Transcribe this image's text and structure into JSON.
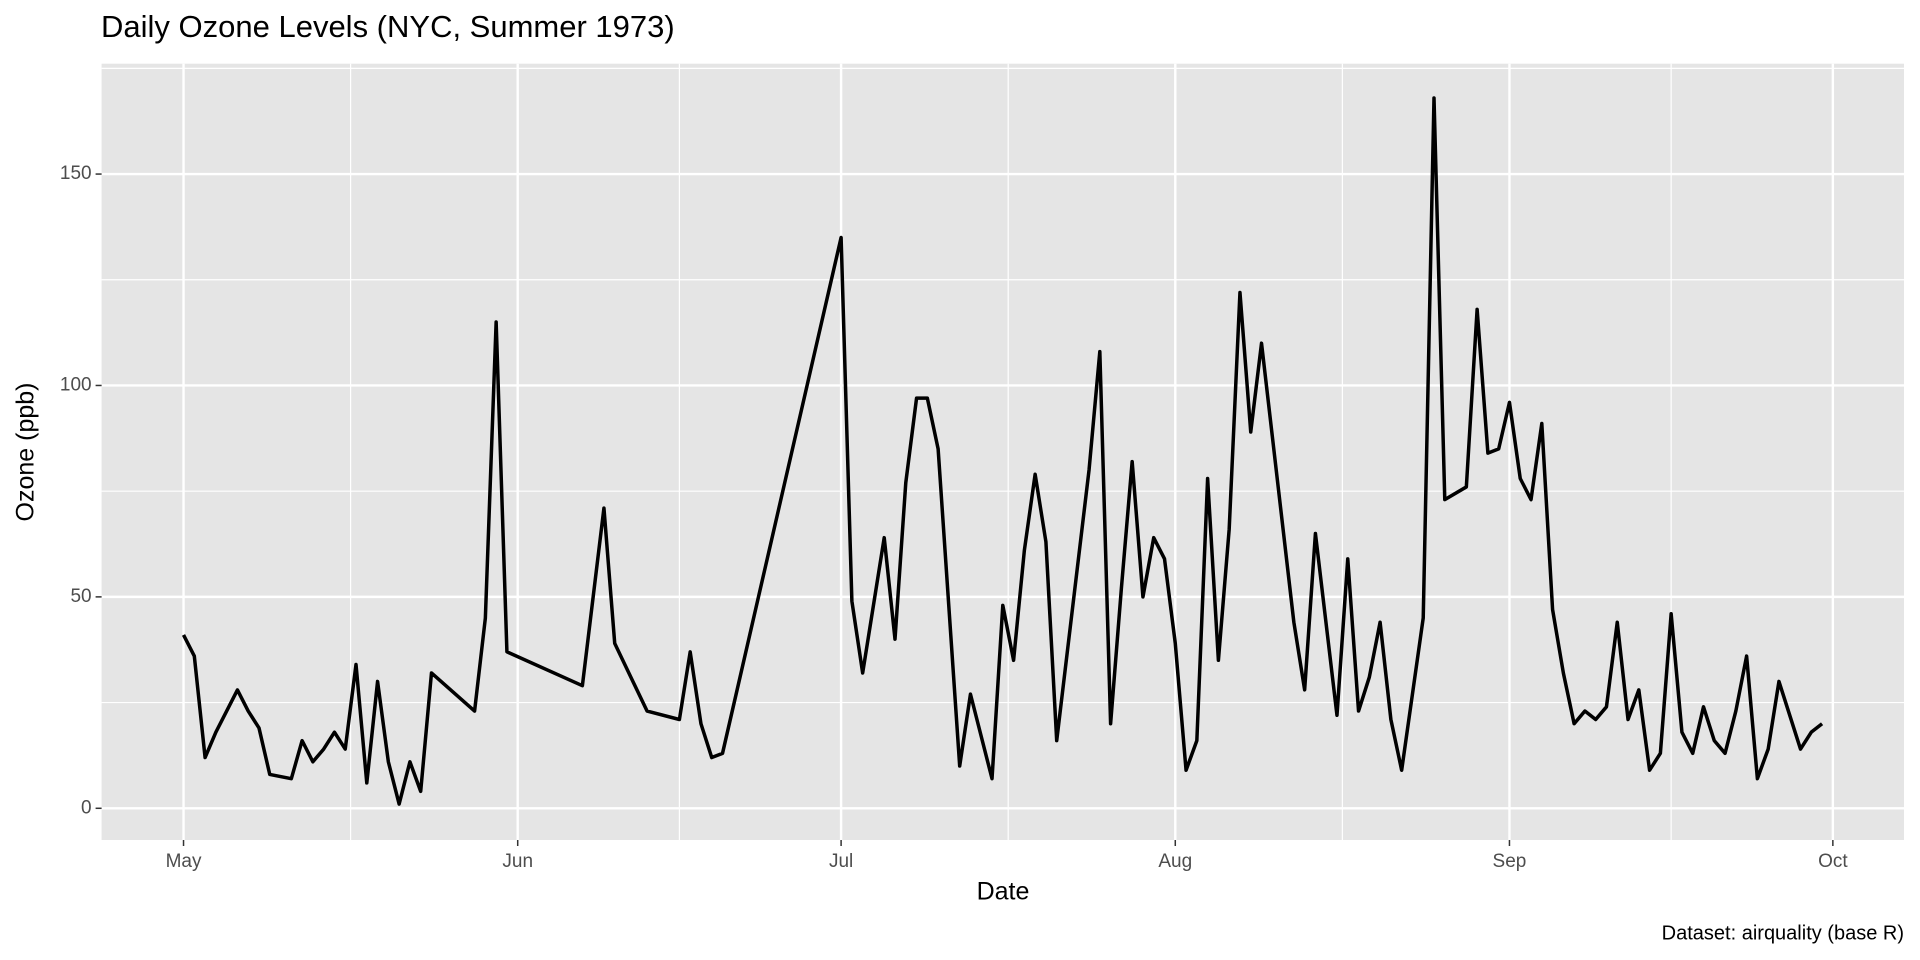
{
  "chart_data": {
    "type": "line",
    "title": "Daily Ozone Levels (NYC, Summer 1973)",
    "x_label": "Date",
    "y_label": "Ozone (ppb)",
    "caption": "Dataset: airquality (base R)",
    "color": "#000000",
    "grid": true,
    "x": [
      121,
      122,
      123,
      124,
      126,
      127,
      128,
      129,
      131,
      132,
      133,
      134,
      135,
      136,
      137,
      138,
      139,
      140,
      141,
      142,
      143,
      144,
      148,
      149,
      150,
      151,
      158,
      160,
      161,
      164,
      167,
      168,
      169,
      170,
      171,
      182,
      183,
      184,
      186,
      187,
      188,
      189,
      190,
      191,
      193,
      194,
      196,
      197,
      198,
      199,
      200,
      201,
      202,
      205,
      206,
      207,
      208,
      209,
      210,
      211,
      212,
      213,
      214,
      215,
      216,
      217,
      218,
      219,
      220,
      221,
      224,
      225,
      226,
      228,
      229,
      230,
      231,
      232,
      233,
      234,
      236,
      237,
      238,
      240,
      241,
      242,
      243,
      244,
      245,
      246,
      247,
      248,
      249,
      250,
      251,
      252,
      253,
      254,
      255,
      256,
      257,
      258,
      259,
      260,
      261,
      262,
      263,
      264,
      265,
      266,
      267,
      268,
      269,
      271,
      272,
      273
    ],
    "values": [
      41,
      36,
      12,
      18,
      28,
      23,
      19,
      8,
      7,
      16,
      11,
      14,
      18,
      14,
      34,
      6,
      30,
      11,
      1,
      11,
      4,
      32,
      23,
      45,
      115,
      37,
      29,
      71,
      39,
      23,
      21,
      37,
      20,
      12,
      13,
      135,
      49,
      32,
      64,
      40,
      77,
      97,
      97,
      85,
      10,
      27,
      7,
      48,
      35,
      61,
      79,
      63,
      16,
      80,
      108,
      20,
      52,
      82,
      50,
      64,
      59,
      39,
      9,
      16,
      78,
      35,
      66,
      122,
      89,
      110,
      44,
      28,
      65,
      22,
      59,
      23,
      31,
      44,
      21,
      9,
      45,
      168,
      73,
      76,
      118,
      84,
      85,
      96,
      78,
      73,
      91,
      47,
      32,
      20,
      23,
      21,
      24,
      44,
      21,
      28,
      9,
      13,
      46,
      18,
      13,
      24,
      16,
      13,
      23,
      36,
      7,
      14,
      30,
      14,
      18,
      20
    ],
    "xlim": [
      113.4,
      280.6
    ],
    "xticks": [
      {
        "value": 121,
        "label": "May"
      },
      {
        "value": 152,
        "label": "Jun"
      },
      {
        "value": 182,
        "label": "Jul"
      },
      {
        "value": 213,
        "label": "Aug"
      },
      {
        "value": 244,
        "label": "Sep"
      },
      {
        "value": 274,
        "label": "Oct"
      }
    ],
    "minor_xticks": [
      136.5,
      167,
      197.5,
      228.5,
      259
    ],
    "ylim": [
      -7.5,
      176.1
    ],
    "yticks": [
      0,
      50,
      100,
      150
    ],
    "minor_yticks": [
      25,
      75,
      125,
      175
    ]
  }
}
